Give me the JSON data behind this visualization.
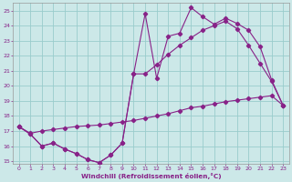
{
  "xlabel": "Windchill (Refroidissement éolien,°C)",
  "bg_color": "#cce8e8",
  "line_color": "#882288",
  "grid_color": "#99cccc",
  "xlim": [
    -0.5,
    23.5
  ],
  "ylim": [
    14.8,
    25.5
  ],
  "xticks": [
    0,
    1,
    2,
    3,
    4,
    5,
    6,
    7,
    8,
    9,
    10,
    11,
    12,
    13,
    14,
    15,
    16,
    17,
    18,
    19,
    20,
    21,
    22,
    23
  ],
  "yticks": [
    15,
    16,
    17,
    18,
    19,
    20,
    21,
    22,
    23,
    24,
    25
  ],
  "line1_x": [
    0,
    1,
    2,
    3,
    4,
    5,
    6,
    7,
    8,
    9,
    10,
    11,
    12,
    13,
    14,
    15,
    16,
    17,
    18,
    19,
    20,
    21,
    22,
    23
  ],
  "line1_y": [
    17.3,
    16.85,
    17.0,
    17.1,
    17.2,
    17.3,
    17.35,
    17.4,
    17.5,
    17.6,
    17.7,
    17.85,
    18.0,
    18.15,
    18.35,
    18.55,
    18.65,
    18.8,
    18.95,
    19.05,
    19.15,
    19.25,
    19.35,
    18.7
  ],
  "line2_x": [
    0,
    1,
    2,
    3,
    4,
    5,
    6,
    7,
    8,
    9,
    10,
    11,
    12,
    13,
    14,
    15,
    16,
    17,
    18,
    19,
    20,
    21,
    22,
    23
  ],
  "line2_y": [
    17.3,
    16.8,
    16.0,
    16.2,
    15.8,
    15.5,
    15.1,
    14.9,
    15.4,
    16.2,
    20.8,
    24.8,
    20.5,
    23.3,
    23.5,
    25.2,
    24.6,
    24.1,
    24.5,
    24.15,
    23.7,
    22.6,
    20.4,
    18.7
  ],
  "line3_x": [
    0,
    1,
    2,
    3,
    4,
    5,
    6,
    7,
    8,
    9,
    10,
    11,
    12,
    13,
    14,
    15,
    16,
    17,
    18,
    19,
    20,
    21,
    22,
    23
  ],
  "line3_y": [
    17.3,
    16.8,
    16.0,
    16.2,
    15.8,
    15.5,
    15.1,
    14.9,
    15.4,
    16.2,
    20.8,
    20.8,
    21.4,
    22.1,
    22.7,
    23.2,
    23.7,
    24.0,
    24.3,
    23.8,
    22.7,
    21.5,
    20.3,
    18.7
  ]
}
